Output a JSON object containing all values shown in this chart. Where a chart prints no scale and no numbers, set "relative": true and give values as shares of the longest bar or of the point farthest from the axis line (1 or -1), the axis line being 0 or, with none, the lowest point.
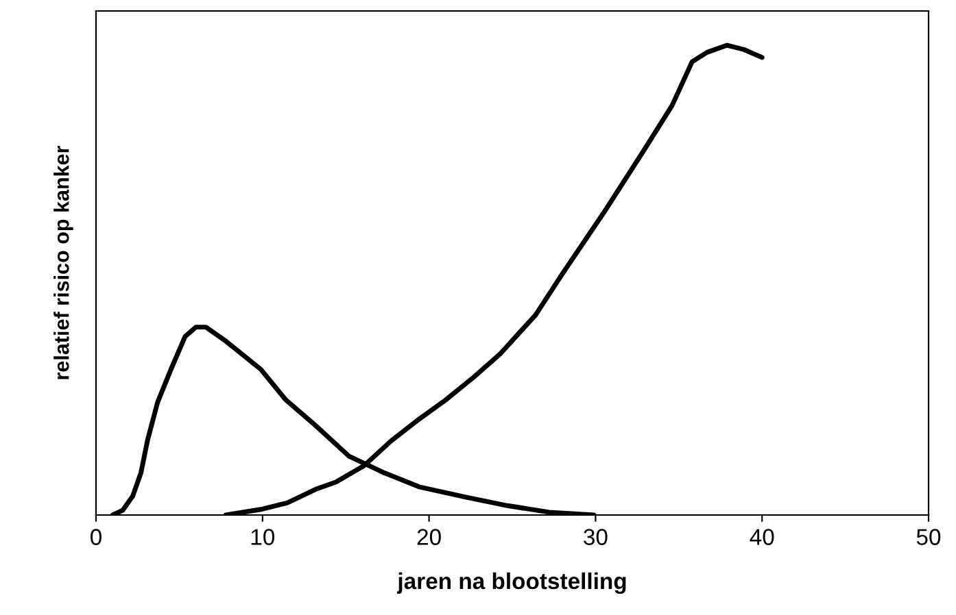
{
  "chart_data": {
    "type": "line",
    "relative": true,
    "xlabel": "jaren na blootstelling",
    "ylabel": "relatief risico op kanker",
    "xlim": [
      0,
      50
    ],
    "xticks": [
      0,
      10,
      20,
      30,
      40,
      50
    ],
    "grid": false,
    "legend": false,
    "marker": "none",
    "line_style": "solid",
    "series": [
      {
        "color": "#000000",
        "x": [
          1,
          1.6,
          2.2,
          2.7,
          3.1,
          3.7,
          4.5,
          5.35,
          6.0,
          6.6,
          7.8,
          9.9,
          11.4,
          13.2,
          15.2,
          17.3,
          19.4,
          22.2,
          24.7,
          27.2,
          29.9
        ],
        "values": [
          0,
          0.01,
          0.04,
          0.09,
          0.16,
          0.24,
          0.31,
          0.38,
          0.4,
          0.4,
          0.37,
          0.31,
          0.245,
          0.19,
          0.125,
          0.09,
          0.06,
          0.038,
          0.02,
          0.006,
          0
        ]
      },
      {
        "color": "#000000",
        "x": [
          7.8,
          9.9,
          11.5,
          13.2,
          14.4,
          16.1,
          17.7,
          19.4,
          21.0,
          22.7,
          24.3,
          26.4,
          28.0,
          30.5,
          32.9,
          34.6,
          35.8,
          36.7,
          37.9,
          38.9,
          40.0
        ],
        "values": [
          0,
          0.012,
          0.026,
          0.055,
          0.07,
          0.105,
          0.157,
          0.204,
          0.245,
          0.294,
          0.344,
          0.426,
          0.513,
          0.644,
          0.776,
          0.872,
          0.965,
          0.985,
          1.0,
          0.991,
          0.974
        ]
      }
    ]
  }
}
